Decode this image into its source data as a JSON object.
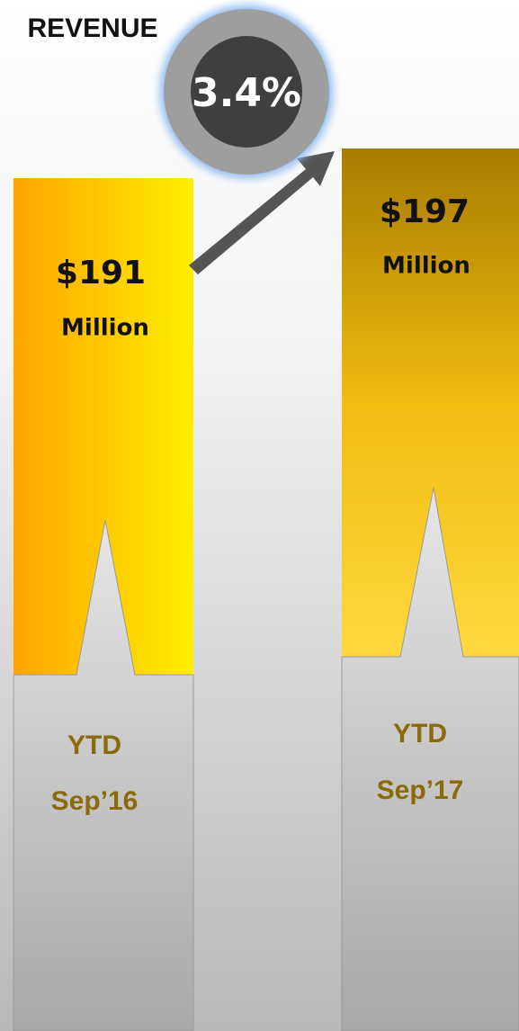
{
  "title": "REVENUE",
  "growth": "3.4%",
  "panels": [
    {
      "amount": "$191",
      "unit": "Million",
      "period": [
        "YTD",
        "Sep’16"
      ]
    },
    {
      "amount": "$197",
      "unit": "Million",
      "period": [
        "YTD",
        "Sep’17"
      ]
    }
  ]
}
